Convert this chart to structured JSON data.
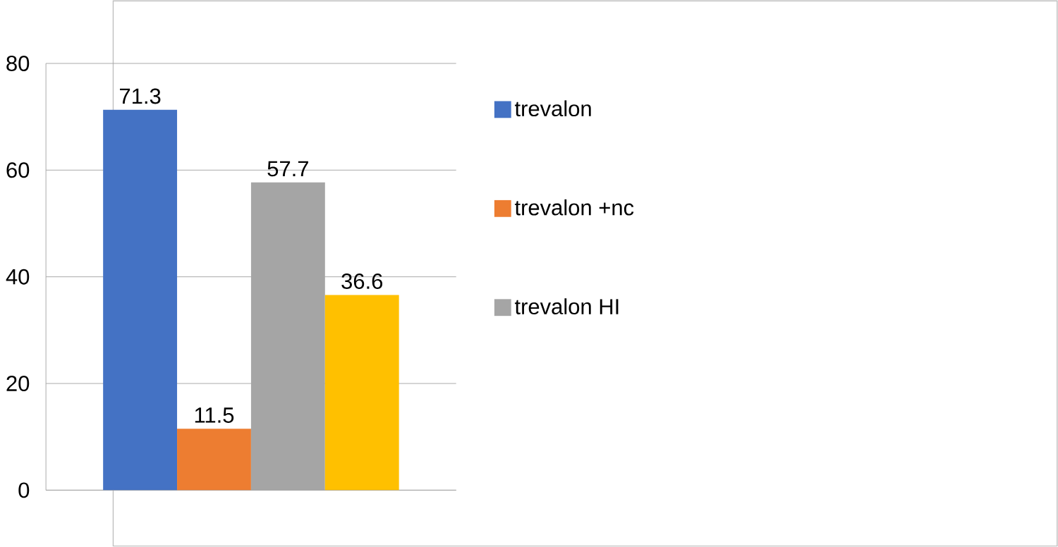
{
  "chart_data": {
    "type": "bar",
    "categories": [
      null
    ],
    "series": [
      {
        "name": "trevalon",
        "color": "#4472c4",
        "values": [
          71.3
        ]
      },
      {
        "name": "trevalon +nc",
        "color": "#ed7d31",
        "values": [
          11.5
        ]
      },
      {
        "name": "trevalon HI",
        "color": "#a5a5a5",
        "values": [
          57.7
        ]
      },
      {
        "color": "#ffc000",
        "values": [
          36.6
        ]
      }
    ],
    "ylim": [
      0,
      80
    ],
    "yticks": [
      0,
      20,
      40,
      60,
      80
    ],
    "grid": "y",
    "legend": "right",
    "data_labels": true
  }
}
